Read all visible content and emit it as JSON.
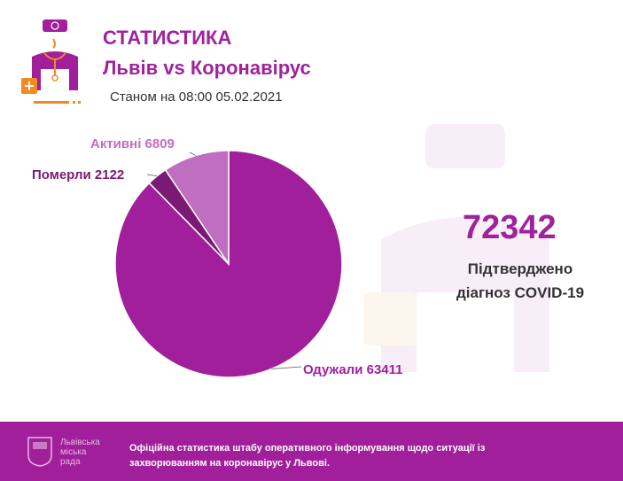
{
  "header": {
    "title": "СТАТИСТИКА",
    "subtitle": "Львів vs Коронавірус",
    "date": "Станом на 08:00 05.02.2021"
  },
  "summary": {
    "total": "72342",
    "label_line1": "Підтверджено",
    "label_line2": "діагноз COVID-19"
  },
  "chart_data": {
    "type": "pie",
    "slices": [
      {
        "name": "Одужали",
        "value": 63411,
        "label": "Одужали 63411",
        "color": "#a11f9b"
      },
      {
        "name": "Померли",
        "value": 2122,
        "label": "Померли 2122",
        "color": "#7a1a74"
      },
      {
        "name": "Активні",
        "value": 6809,
        "label": "Активні 6809",
        "color": "#c06ec0"
      }
    ]
  },
  "footer": {
    "text": "Офіційна статистика штабу оперативного інформування щодо ситуації із захворюванням на коронавірус у Львові.",
    "org_line1": "Львівська",
    "org_line2": "міська",
    "org_line3": "рада"
  },
  "colors": {
    "brand": "#a11f9b",
    "accent": "#f08a24"
  }
}
